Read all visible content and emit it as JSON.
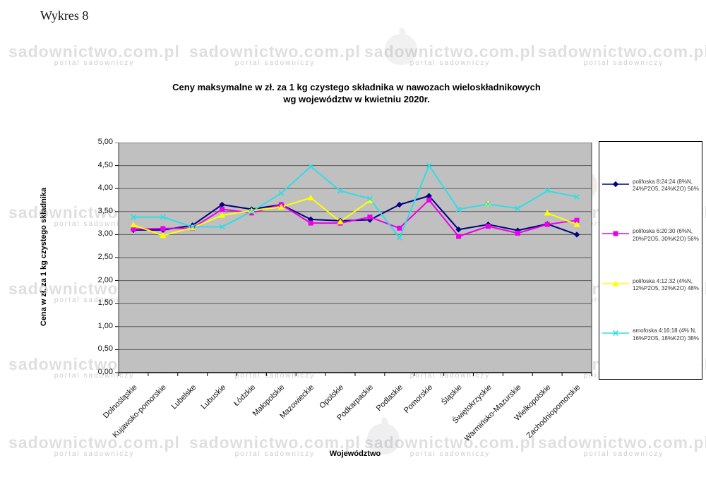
{
  "page": {
    "heading": "Wykres 8"
  },
  "watermark": {
    "text": "sadownictwo.com.pl",
    "subtext": "portal sadowniczy"
  },
  "chart_data": {
    "type": "line",
    "title_line1": "Ceny maksymalne  w zł. za 1 kg czystego składnika w nawozach wieloskładnikowych",
    "title_line2": "wg województw w kwietniu   2020r.",
    "xlabel": "Województwo",
    "ylabel": "Cena w zł. za 1 kg czystego składnika",
    "ylim": [
      0,
      5
    ],
    "ytick_step": 0.5,
    "ytick_labels": [
      "0,00",
      "0,50",
      "1,00",
      "1,50",
      "2,00",
      "2,50",
      "3,00",
      "3,50",
      "4,00",
      "4,50",
      "5,00"
    ],
    "grid": true,
    "legend_position": "right",
    "plot_bg": "#c0c0c0",
    "categories": [
      "Dolnośląskie",
      "Kujawsko-pomorskie",
      "Lubelske",
      "Lubuskie",
      "Łódzkie",
      "Małopolskie",
      "Mazowieckie",
      "Opolskie",
      "Podkarpackie",
      "Podlaskie",
      "Pomorskie",
      "Śląskie",
      "Świętokrzyskie",
      "Warmińsko-Mazurskie",
      "Wielkopolskie",
      "Zachodniopomorskie"
    ],
    "series": [
      {
        "name": "polifoska 8:24:24 (8%N, 24%P2O5, 24%K2O) 56%",
        "color": "#000080",
        "marker": "diamond",
        "values": [
          3.1,
          3.1,
          3.2,
          3.65,
          3.55,
          3.65,
          3.33,
          3.3,
          3.32,
          3.65,
          3.84,
          3.11,
          3.22,
          3.09,
          3.23,
          3.0
        ]
      },
      {
        "name": "polifoska 6:20:30 (6%N, 20%P2O5, 30%K2O) 56%",
        "color": "#ea00ea",
        "marker": "square",
        "values": [
          3.12,
          3.13,
          3.14,
          3.55,
          3.47,
          3.65,
          3.25,
          3.25,
          3.38,
          3.14,
          3.75,
          2.96,
          3.18,
          3.03,
          3.22,
          3.31
        ]
      },
      {
        "name": "polifoska 4:12:32 (4%N, 12%P2O5, 32%K2O) 48%",
        "color": "#ffff00",
        "marker": "triangle",
        "values": [
          3.21,
          2.98,
          3.15,
          3.42,
          3.52,
          3.6,
          3.8,
          3.28,
          3.74,
          null,
          null,
          null,
          3.67,
          null,
          3.47,
          3.22
        ]
      },
      {
        "name": "amofoska 4:16:18 (4% N, 16%P2O5, 18%K2O) 38%",
        "color": "#30dde6",
        "marker": "x",
        "values": [
          3.38,
          3.38,
          3.17,
          3.17,
          3.5,
          3.9,
          4.48,
          3.95,
          3.78,
          2.93,
          4.5,
          3.55,
          3.66,
          3.57,
          3.95,
          3.82
        ]
      }
    ]
  }
}
